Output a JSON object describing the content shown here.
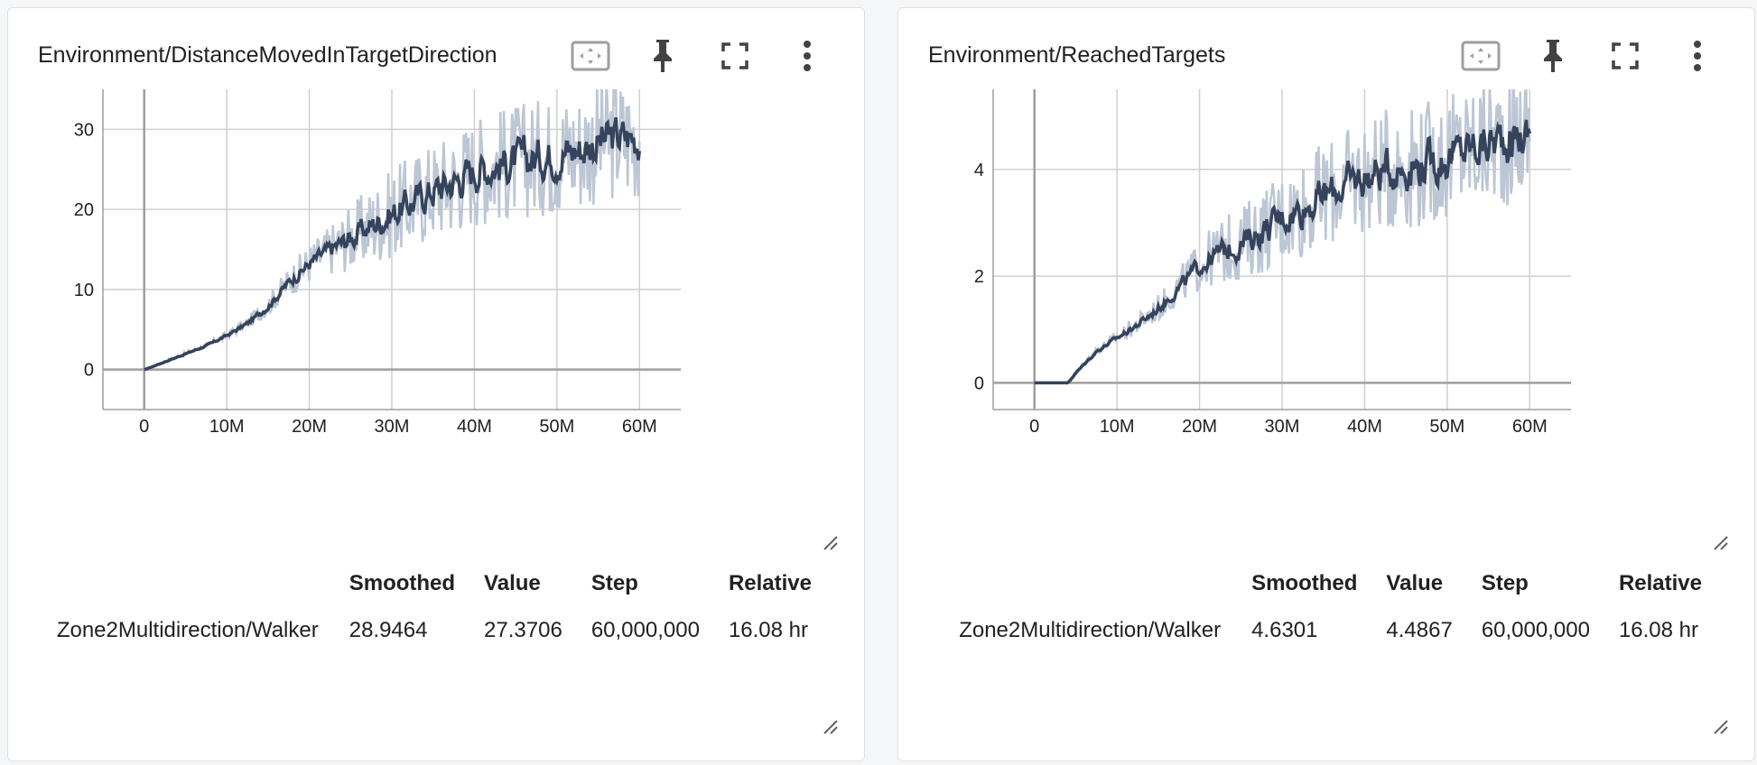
{
  "cards": [
    {
      "title": "Environment/DistanceMovedInTargetDirection",
      "columns": [
        "",
        "Smoothed",
        "Value",
        "Step",
        "Relative"
      ],
      "row": {
        "run": "Zone2Multidirection/Walker",
        "smoothed": "28.9464",
        "value": "27.3706",
        "step": "60,000,000",
        "relative": "16.08 hr"
      }
    },
    {
      "title": "Environment/ReachedTargets",
      "columns": [
        "",
        "Smoothed",
        "Value",
        "Step",
        "Relative"
      ],
      "row": {
        "run": "Zone2Multidirection/Walker",
        "smoothed": "4.6301",
        "value": "4.4867",
        "step": "60,000,000",
        "relative": "16.08 hr"
      }
    }
  ],
  "toolbar_icons": [
    "fit-domain-icon",
    "pin-icon",
    "fullscreen-icon",
    "more-vert-icon"
  ],
  "colors": {
    "smoothed_line": "#35435c",
    "raw_line": "#bcc6d4",
    "grid": "#cfcfcf",
    "axis": "#9e9e9e"
  },
  "chart_data": [
    {
      "type": "line",
      "title": "Environment/DistanceMovedInTargetDirection",
      "xlabel": "",
      "ylabel": "",
      "x_ticks": [
        "0",
        "10M",
        "20M",
        "30M",
        "40M",
        "50M",
        "60M"
      ],
      "y_ticks": [
        0,
        10,
        20,
        30
      ],
      "xlim": [
        -5000000,
        65000000
      ],
      "ylim": [
        -5,
        35
      ],
      "grid": true,
      "series": [
        {
          "x": [
            0,
            2500000,
            5000000,
            7500000,
            10000000,
            12500000,
            15000000,
            17500000,
            20000000,
            22500000,
            25000000,
            27500000,
            30000000,
            32500000,
            35000000,
            37500000,
            40000000,
            42500000,
            45000000,
            47500000,
            50000000,
            52500000,
            55000000,
            57500000,
            60000000
          ],
          "values": [
            0,
            1.0,
            2.0,
            3.0,
            4.3,
            5.8,
            8.0,
            11.0,
            13.3,
            15.0,
            16.5,
            18.0,
            19.5,
            21.0,
            22.5,
            23.5,
            25.0,
            25.5,
            26.0,
            26.5,
            27.0,
            27.5,
            28.5,
            29.0,
            29.0
          ],
          "spread": [
            0,
            0.1,
            0.15,
            0.2,
            0.3,
            0.5,
            0.8,
            1.2,
            1.6,
            2.0,
            2.6,
            3.2,
            3.5,
            3.8,
            4.0,
            4.2,
            4.4,
            4.5,
            4.6,
            4.7,
            4.8,
            4.9,
            5.0,
            5.0,
            5.0
          ]
        }
      ]
    },
    {
      "type": "line",
      "title": "Environment/ReachedTargets",
      "xlabel": "",
      "ylabel": "",
      "x_ticks": [
        "0",
        "10M",
        "20M",
        "30M",
        "40M",
        "50M",
        "60M"
      ],
      "y_ticks": [
        0,
        2,
        4
      ],
      "xlim": [
        -5000000,
        65000000
      ],
      "ylim": [
        -0.5,
        5.5
      ],
      "grid": true,
      "series": [
        {
          "x": [
            0,
            2500000,
            4000000,
            5000000,
            7500000,
            10000000,
            12500000,
            15000000,
            17500000,
            20000000,
            22500000,
            25000000,
            27500000,
            30000000,
            32500000,
            35000000,
            37500000,
            40000000,
            42500000,
            45000000,
            47500000,
            50000000,
            52500000,
            55000000,
            57500000,
            60000000
          ],
          "values": [
            0,
            0,
            0,
            0.2,
            0.6,
            0.85,
            1.1,
            1.4,
            1.8,
            2.2,
            2.45,
            2.6,
            2.85,
            3.1,
            3.3,
            3.5,
            3.7,
            3.85,
            4.0,
            4.05,
            4.1,
            4.2,
            4.4,
            4.5,
            4.6,
            4.63
          ],
          "spread": [
            0,
            0,
            0,
            0.02,
            0.05,
            0.08,
            0.12,
            0.16,
            0.22,
            0.3,
            0.38,
            0.45,
            0.5,
            0.55,
            0.6,
            0.62,
            0.65,
            0.68,
            0.7,
            0.72,
            0.74,
            0.76,
            0.78,
            0.8,
            0.8,
            0.8
          ]
        }
      ]
    }
  ]
}
